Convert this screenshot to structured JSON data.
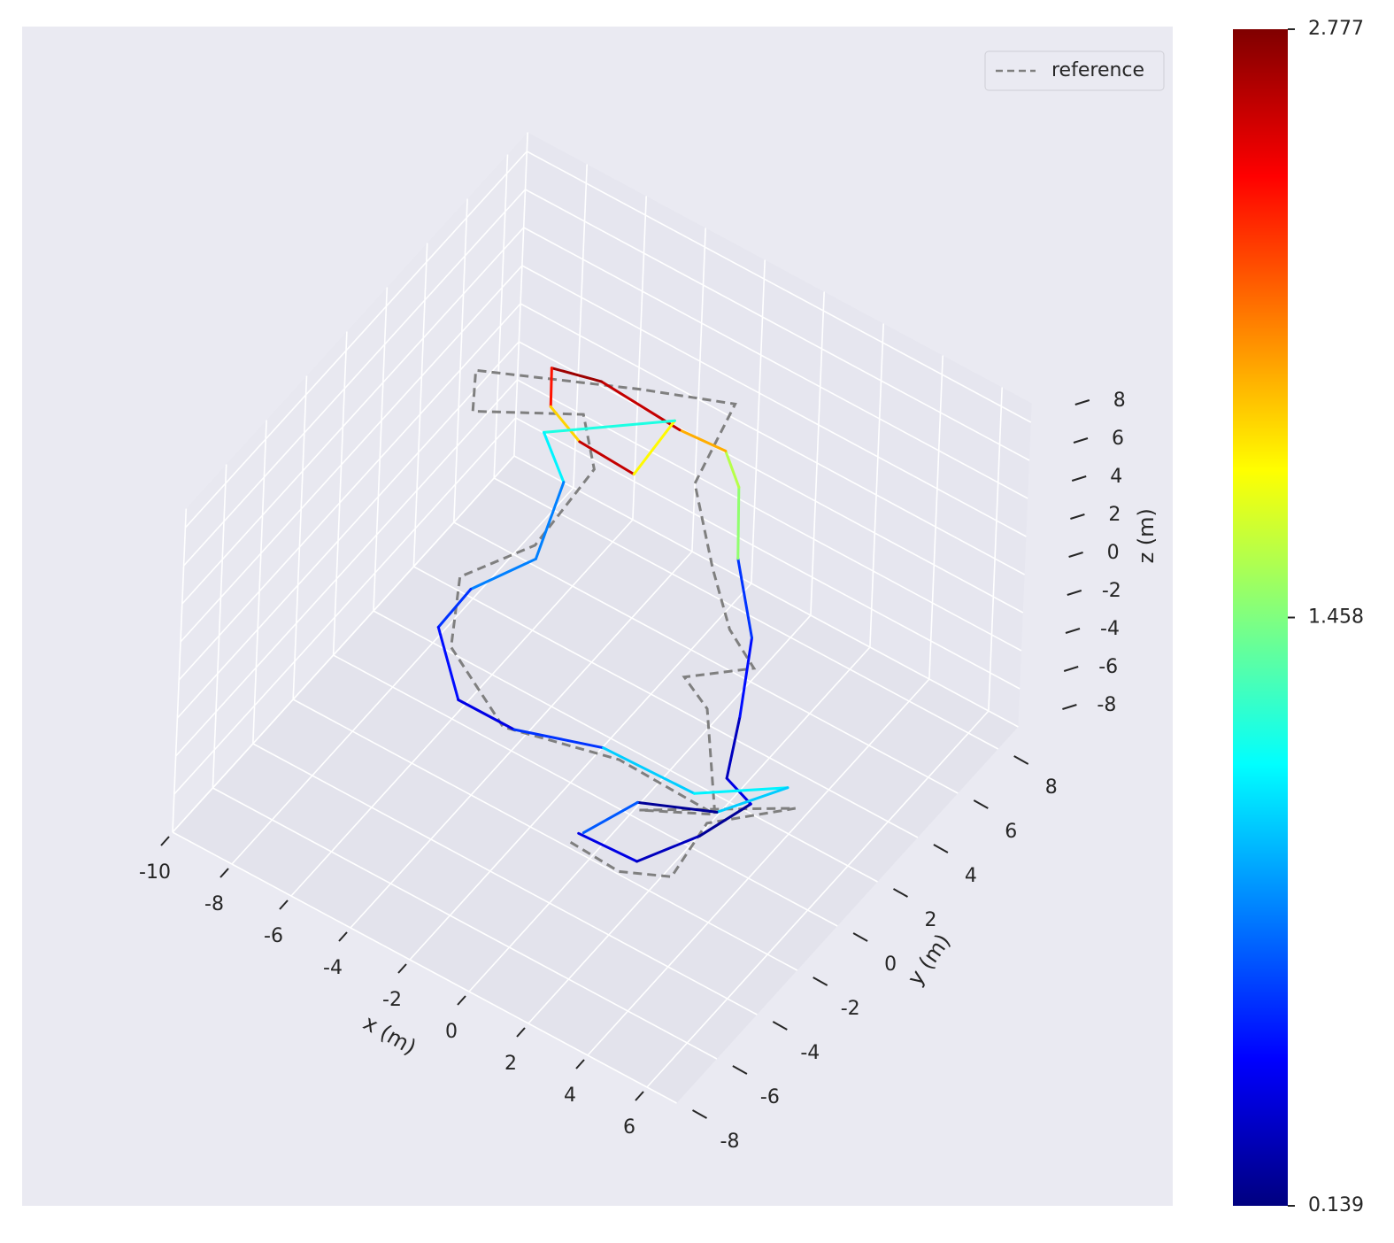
{
  "chart_data": {
    "type": "trajectory3d",
    "xlabel": "x (m)",
    "ylabel": "y (m)",
    "zlabel": "z (m)",
    "xlim": [
      -10,
      7
    ],
    "ylim": [
      -8,
      9
    ],
    "zlim": [
      -8,
      9
    ],
    "xticks": [
      -10,
      -8,
      -6,
      -4,
      -2,
      0,
      2,
      4,
      6
    ],
    "yticks": [
      -8,
      -6,
      -4,
      -2,
      0,
      2,
      4,
      6,
      8
    ],
    "zticks": [
      -8,
      -6,
      -4,
      -2,
      0,
      2,
      4,
      6,
      8
    ],
    "grid": true,
    "legend": "upper right",
    "colorbar": {
      "lim": [
        0.139,
        2.777
      ],
      "ticks": [
        0.139,
        1.458,
        2.777
      ],
      "colormap": "jet"
    },
    "series": [
      {
        "name": "reference",
        "color": "#7f7f7f",
        "dashed": true,
        "x": [
          -0.4,
          1.3,
          2.6,
          2.3,
          4.0,
          0.5,
          2.3,
          0.7,
          -0.1,
          1.3,
          0.7,
          -0.2,
          -1.6,
          -1.2,
          -3.3,
          -7.4,
          -7.0,
          -4.8,
          -3.8,
          -4.7,
          -6.5,
          -6.0,
          -4.3,
          -1.0,
          2.3
        ],
        "y": [
          -2.4,
          -2.5,
          -1.8,
          0.4,
          2.3,
          -0.3,
          0.8,
          2.7,
          2.7,
          4.1,
          3.7,
          4.1,
          5.2,
          6.5,
          4.8,
          2.7,
          2.0,
          4.3,
          3.4,
          1.9,
          0.9,
          -0.2,
          0.0,
          0.9,
          0.8
        ],
        "z": [
          -7,
          -7,
          -7,
          -7,
          -7,
          -7,
          -7,
          -5,
          -4,
          -4,
          -2,
          0,
          2,
          5,
          6,
          6,
          5,
          4,
          3,
          0,
          -2,
          -4,
          -7,
          -7,
          -7
        ]
      },
      {
        "color": "jet",
        "x": [
          -0.4,
          1.5,
          2.4,
          2.9,
          2.2,
          1.6,
          1.0,
          -0.2,
          -0.9,
          -1.2,
          -2.3,
          -4.7,
          -6.1,
          -5.7,
          -4.7,
          -2.8,
          -2.6,
          -5.7,
          -4.6,
          -4.4,
          -6.0,
          -6.7,
          -5.5,
          -4.0,
          -1.6,
          1.4,
          3.4,
          2.3,
          0.3,
          -0.3
        ],
        "y": [
          -2.0,
          -1.9,
          -0.1,
          1.7,
          1.5,
          3.0,
          4.4,
          5.4,
          6.4,
          6.1,
          5.4,
          5.0,
          4.6,
          4.0,
          4.0,
          3.9,
          5.6,
          3.7,
          3.1,
          1.5,
          0.7,
          0.2,
          -0.5,
          0.1,
          1.0,
          1.1,
          2.8,
          0.9,
          -0.1,
          -1.9
        ],
        "z": [
          -7,
          -7,
          -7,
          -7,
          -6,
          -5,
          -3,
          -1,
          1,
          3,
          4,
          5,
          5,
          4,
          3,
          3,
          4,
          3,
          2,
          0,
          -2,
          -4,
          -6,
          -7,
          -7,
          -7,
          -7,
          -7,
          -7,
          -7
        ],
        "error": [
          0.4,
          0.3,
          0.2,
          0.4,
          0.3,
          0.5,
          0.6,
          1.5,
          1.6,
          2.0,
          2.6,
          2.7,
          2.4,
          1.9,
          2.6,
          1.8,
          1.2,
          1.1,
          0.8,
          0.8,
          0.6,
          0.5,
          0.4,
          0.6,
          1.0,
          1.1,
          1.0,
          0.2,
          0.7,
          0.5
        ]
      }
    ]
  }
}
